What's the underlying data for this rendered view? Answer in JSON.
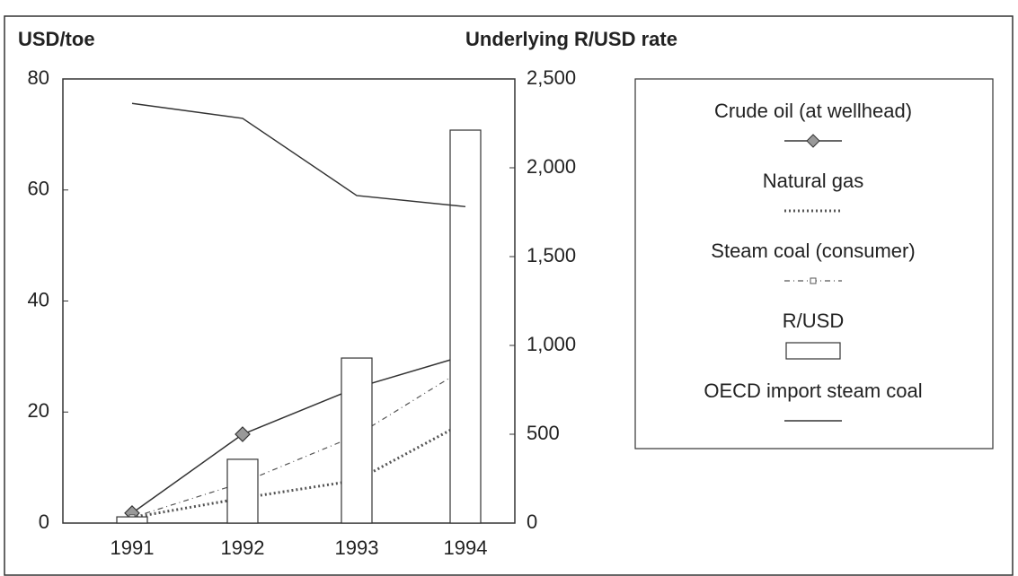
{
  "chart_data": {
    "type": "line",
    "y_label": "USD/toe",
    "y2_label": "Underlying R/USD rate",
    "categories": [
      "1991",
      "1992",
      "1993",
      "1994"
    ],
    "ylim": [
      0,
      80
    ],
    "yticks": [
      0,
      20,
      40,
      60,
      80
    ],
    "y2lim": [
      0,
      2500
    ],
    "y2ticks": [
      0,
      500,
      {
        "value": 1000,
        "label": "1,000"
      },
      {
        "value": 1500,
        "label": "1,500"
      },
      {
        "value": 2000,
        "label": "2,000"
      },
      {
        "value": 2500,
        "label": "2,500"
      }
    ],
    "series": [
      {
        "name": "Crude oil (at wellhead)",
        "color": "#333333",
        "line_style": "solid",
        "marker": "diamond",
        "values": [
          1.8,
          16,
          24.4,
          30.2
        ]
      },
      {
        "name": "Natural gas",
        "color": "#555555",
        "line_style": "dotted",
        "values": [
          1,
          4.5,
          7.7,
          18.2
        ]
      },
      {
        "name": "Steam coal (consumer)",
        "color": "#555555",
        "line_style": "dashdot",
        "marker": "square",
        "values": [
          1,
          7.3,
          15.8,
          27.9
        ]
      },
      {
        "name": "R/USD",
        "type": "bar",
        "axis": "y2",
        "color": "#ffffff",
        "values": [
          35,
          359,
          929,
          2212
        ]
      },
      {
        "name": "OECD import steam coal",
        "color": "#333333",
        "line_style": "solid",
        "values": [
          75.6,
          72.9,
          59,
          57
        ]
      }
    ]
  }
}
